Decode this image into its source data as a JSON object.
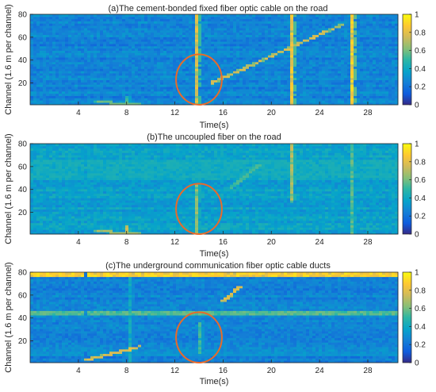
{
  "chart_data": [
    {
      "type": "heatmap",
      "title": "(a)The cement-bonded fixed fiber optic cable on the road",
      "xlabel": "Time(s)",
      "ylabel": "Channel (1.6 m per channel)",
      "xlim": [
        0,
        30.5
      ],
      "ylim": [
        1,
        80
      ],
      "xticks": [
        4,
        8,
        12,
        16,
        20,
        24,
        28
      ],
      "yticks": [
        20,
        40,
        60,
        80
      ],
      "colorbar": {
        "ticks": [
          0,
          0.2,
          0.4,
          0.6,
          0.8,
          1
        ],
        "range": [
          0,
          1
        ],
        "colormap": "parula"
      },
      "annotation": {
        "shape": "ellipse",
        "color": "#e86a2b",
        "center_time_s": 14.0,
        "center_channel": 23,
        "half_width_s": 1.9,
        "half_height_channels": 22
      },
      "features": [
        {
          "kind": "vertical_streak",
          "time_s": 13.9,
          "channel_range": [
            1,
            80
          ],
          "intensity": 0.85
        },
        {
          "kind": "vertical_streak",
          "time_s": 21.6,
          "channel_range": [
            1,
            80
          ],
          "intensity": 0.9
        },
        {
          "kind": "vertical_streak",
          "time_s": 26.8,
          "channel_range": [
            1,
            80
          ],
          "intensity": 0.95
        },
        {
          "kind": "vertical_streak",
          "time_s": 8.0,
          "channel_range": [
            1,
            8
          ],
          "intensity": 0.6
        },
        {
          "kind": "diagonal_track",
          "from": [
            15.0,
            20
          ],
          "to": [
            26.0,
            72
          ],
          "intensity": 0.8
        },
        {
          "kind": "diagonal_track",
          "from": [
            5.5,
            4
          ],
          "to": [
            9.0,
            1
          ],
          "intensity": 0.6
        }
      ]
    },
    {
      "type": "heatmap",
      "title": "(b)The uncoupled fiber on the road",
      "xlabel": "Time(s)",
      "ylabel": "Channel (1.6 m per channel)",
      "xlim": [
        0,
        30.5
      ],
      "ylim": [
        1,
        80
      ],
      "xticks": [
        4,
        8,
        12,
        16,
        20,
        24,
        28
      ],
      "yticks": [
        20,
        40,
        60,
        80
      ],
      "colorbar": {
        "ticks": [
          0,
          0.2,
          0.4,
          0.6,
          0.8,
          1
        ],
        "range": [
          0,
          1
        ],
        "colormap": "parula"
      },
      "annotation": {
        "shape": "ellipse",
        "color": "#e86a2b",
        "center_time_s": 14.0,
        "center_channel": 23,
        "half_width_s": 1.9,
        "half_height_channels": 22
      },
      "features": [
        {
          "kind": "vertical_streak",
          "time_s": 13.9,
          "channel_range": [
            1,
            45
          ],
          "intensity": 0.7
        },
        {
          "kind": "vertical_streak",
          "time_s": 21.6,
          "channel_range": [
            30,
            80
          ],
          "intensity": 0.75
        },
        {
          "kind": "vertical_streak",
          "time_s": 26.8,
          "channel_range": [
            1,
            80
          ],
          "intensity": 0.6
        },
        {
          "kind": "vertical_streak",
          "time_s": 8.0,
          "channel_range": [
            1,
            8
          ],
          "intensity": 0.75
        },
        {
          "kind": "horizontal_band",
          "channel_range": [
            50,
            66
          ],
          "intensity": 0.45
        },
        {
          "kind": "diagonal_track",
          "from": [
            16.5,
            40
          ],
          "to": [
            19.0,
            62
          ],
          "intensity": 0.55
        },
        {
          "kind": "diagonal_track",
          "from": [
            5.5,
            4
          ],
          "to": [
            9.0,
            1
          ],
          "intensity": 0.7
        }
      ]
    },
    {
      "type": "heatmap",
      "title": "(c)The underground communication fiber optic cable ducts",
      "xlabel": "Time(s)",
      "ylabel": "Channel (1.6 m per channel)",
      "xlim": [
        0,
        30.5
      ],
      "ylim": [
        1,
        80
      ],
      "xticks": [
        4,
        8,
        12,
        16,
        20,
        24,
        28
      ],
      "yticks": [
        20,
        40,
        60,
        80
      ],
      "colorbar": {
        "ticks": [
          0,
          0.2,
          0.4,
          0.6,
          0.8,
          1
        ],
        "range": [
          0,
          1
        ],
        "colormap": "parula"
      },
      "annotation": {
        "shape": "ellipse",
        "color": "#e86a2b",
        "center_time_s": 14.0,
        "center_channel": 23,
        "half_width_s": 1.9,
        "half_height_channels": 22
      },
      "features": [
        {
          "kind": "horizontal_band",
          "channel_range": [
            77,
            80
          ],
          "intensity": 0.95
        },
        {
          "kind": "horizontal_band",
          "channel_range": [
            43,
            46
          ],
          "intensity": 0.6
        },
        {
          "kind": "horizontal_band",
          "channel_range": [
            7,
            9
          ],
          "intensity": 0.35
        },
        {
          "kind": "vertical_streak",
          "time_s": 8.2,
          "channel_range": [
            1,
            80
          ],
          "intensity": 0.45
        },
        {
          "kind": "vertical_streak",
          "time_s": 14.0,
          "channel_range": [
            10,
            35
          ],
          "intensity": 0.55
        },
        {
          "kind": "diagonal_track",
          "from": [
            4.5,
            3
          ],
          "to": [
            9.0,
            15
          ],
          "intensity": 0.8
        },
        {
          "kind": "diagonal_track",
          "from": [
            16.0,
            55
          ],
          "to": [
            17.5,
            68
          ],
          "intensity": 0.8
        }
      ]
    }
  ]
}
